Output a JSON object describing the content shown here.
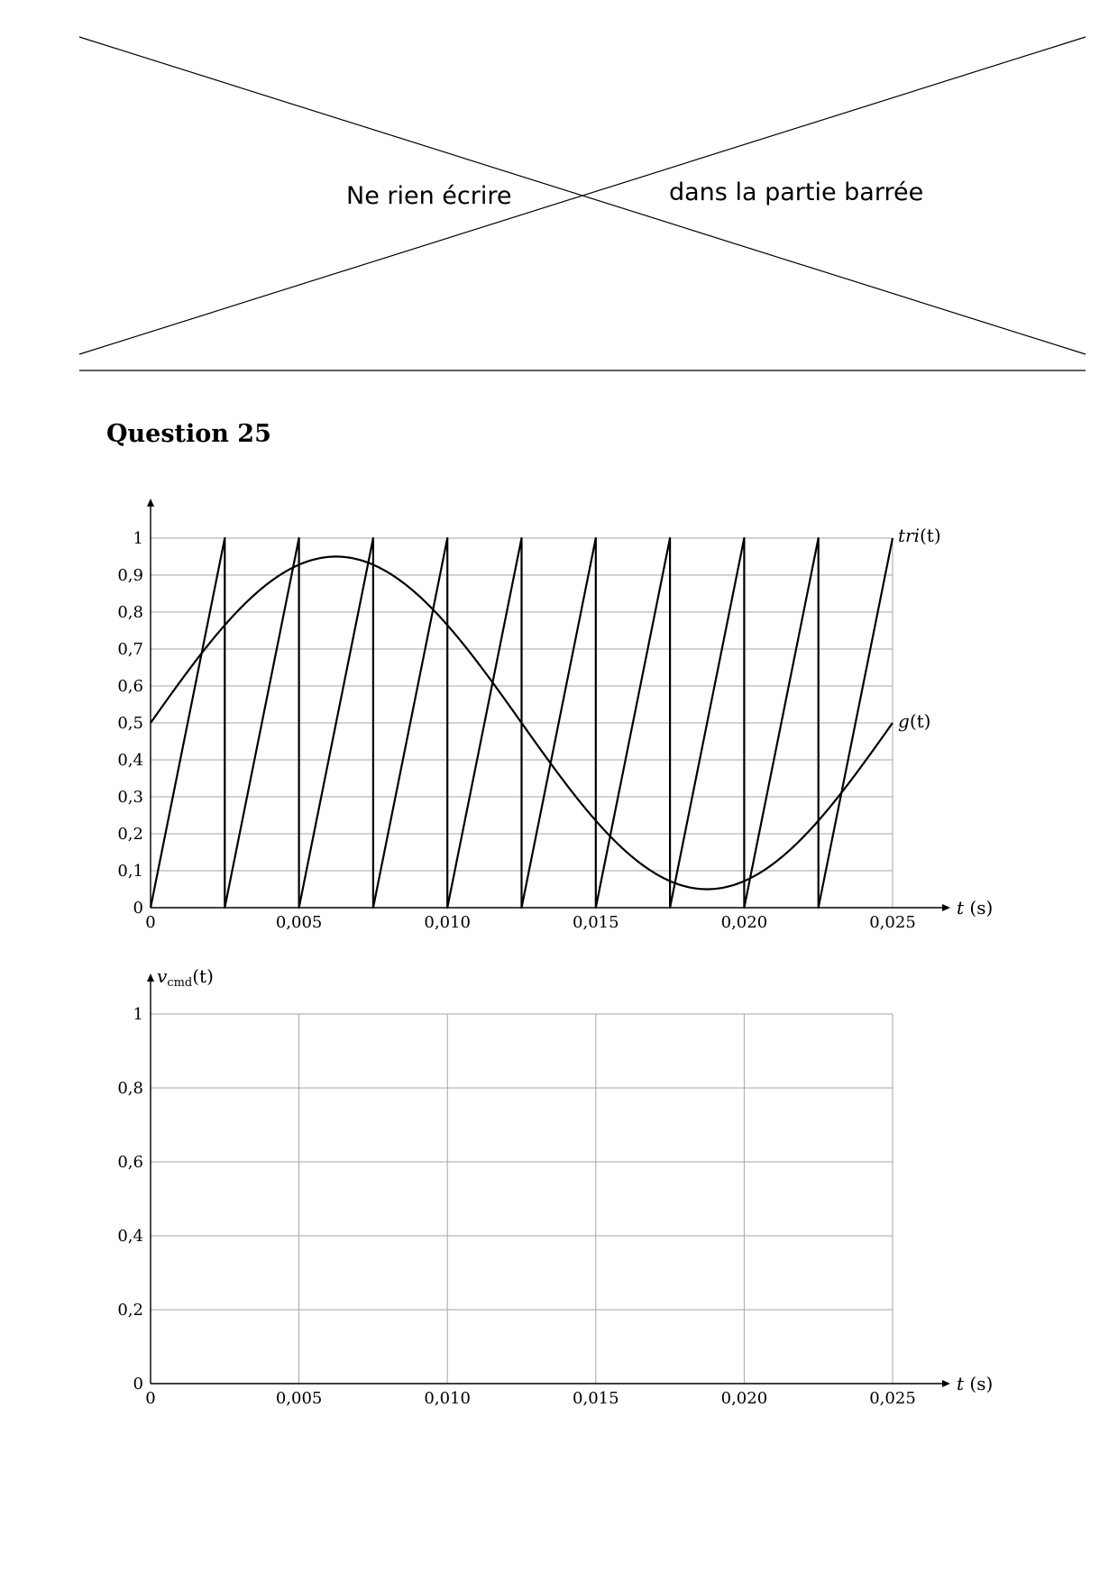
{
  "banner": {
    "left_text": "Ne rien écrire",
    "right_text": "dans la partie barrée"
  },
  "question": {
    "title": "Question 25"
  },
  "chart_data": [
    {
      "type": "line",
      "title": "",
      "xlabel": "t (s)",
      "xlabel_var": "t",
      "xlabel_unit": "(s)",
      "ylabel": "",
      "xlim": [
        0,
        0.025
      ],
      "ylim": [
        0,
        1
      ],
      "x_ticks": [
        0,
        0.005,
        0.01,
        0.015,
        0.02,
        0.025
      ],
      "x_tick_labels": [
        "0",
        "0,005",
        "0,010",
        "0,015",
        "0,020",
        "0,025"
      ],
      "y_ticks": [
        0,
        0.1,
        0.2,
        0.3,
        0.4,
        0.5,
        0.6,
        0.7,
        0.8,
        0.9,
        1
      ],
      "y_tick_labels": [
        "0",
        "0,1",
        "0,2",
        "0,3",
        "0,4",
        "0,5",
        "0,6",
        "0,7",
        "0,8",
        "0,9",
        "1"
      ],
      "grid": "horizontal",
      "series": [
        {
          "name": "tri(t)",
          "name_main": "tri",
          "name_arg": "(t)",
          "kind": "sawtooth",
          "period": 0.0025,
          "min": 0,
          "max": 1
        },
        {
          "name": "g(t)",
          "name_main": "g",
          "name_arg": "(t)",
          "kind": "sine",
          "offset": 0.5,
          "amplitude": 0.45,
          "period": 0.025,
          "phase": 0
        }
      ]
    },
    {
      "type": "line",
      "title": "",
      "xlabel": "t (s)",
      "xlabel_var": "t",
      "xlabel_unit": "(s)",
      "ylabel": "v_cmd(t)",
      "ylabel_var": "v",
      "ylabel_sub": "cmd",
      "ylabel_arg": "(t)",
      "xlim": [
        0,
        0.025
      ],
      "ylim": [
        0,
        1
      ],
      "x_ticks": [
        0,
        0.005,
        0.01,
        0.015,
        0.02,
        0.025
      ],
      "x_tick_labels": [
        "0",
        "0,005",
        "0,010",
        "0,015",
        "0,020",
        "0,025"
      ],
      "y_ticks": [
        0,
        0.2,
        0.4,
        0.6,
        0.8,
        1
      ],
      "y_tick_labels": [
        "0",
        "0,2",
        "0,4",
        "0,6",
        "0,8",
        "1"
      ],
      "grid": "both",
      "series": []
    }
  ]
}
